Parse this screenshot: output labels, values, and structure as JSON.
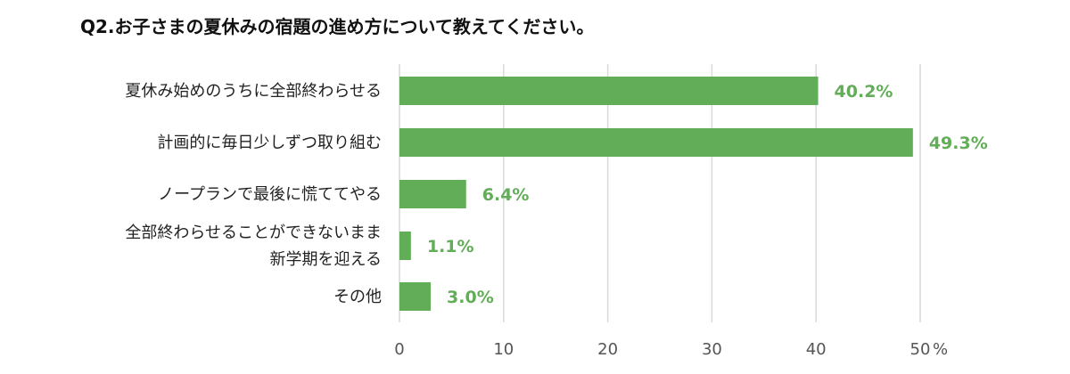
{
  "chart_data": {
    "type": "bar",
    "orientation": "horizontal",
    "title": "Q2.お子さまの夏休みの宿題の進め方について教えてください。",
    "categories": [
      [
        "夏休み始めのうちに全部終わらせる"
      ],
      [
        "計画的に毎日少しずつ取り組む"
      ],
      [
        "ノープランで最後に慌ててやる"
      ],
      [
        "全部終わらせることができないまま",
        "新学期を迎える"
      ],
      [
        "その他"
      ]
    ],
    "values": [
      40.2,
      49.3,
      6.4,
      1.1,
      3.0
    ],
    "data_labels": [
      "40.2%",
      "49.3%",
      "6.4%",
      "1.1%",
      "3.0%"
    ],
    "x_ticks": [
      "0",
      "10",
      "20",
      "30",
      "40",
      "50"
    ],
    "x_unit": "%",
    "xlim": [
      0,
      50
    ],
    "grid": true,
    "legend": "none",
    "colors": {
      "bar": "#62ad57",
      "label": "#62ad57",
      "grid": "#d9d9d9"
    }
  }
}
